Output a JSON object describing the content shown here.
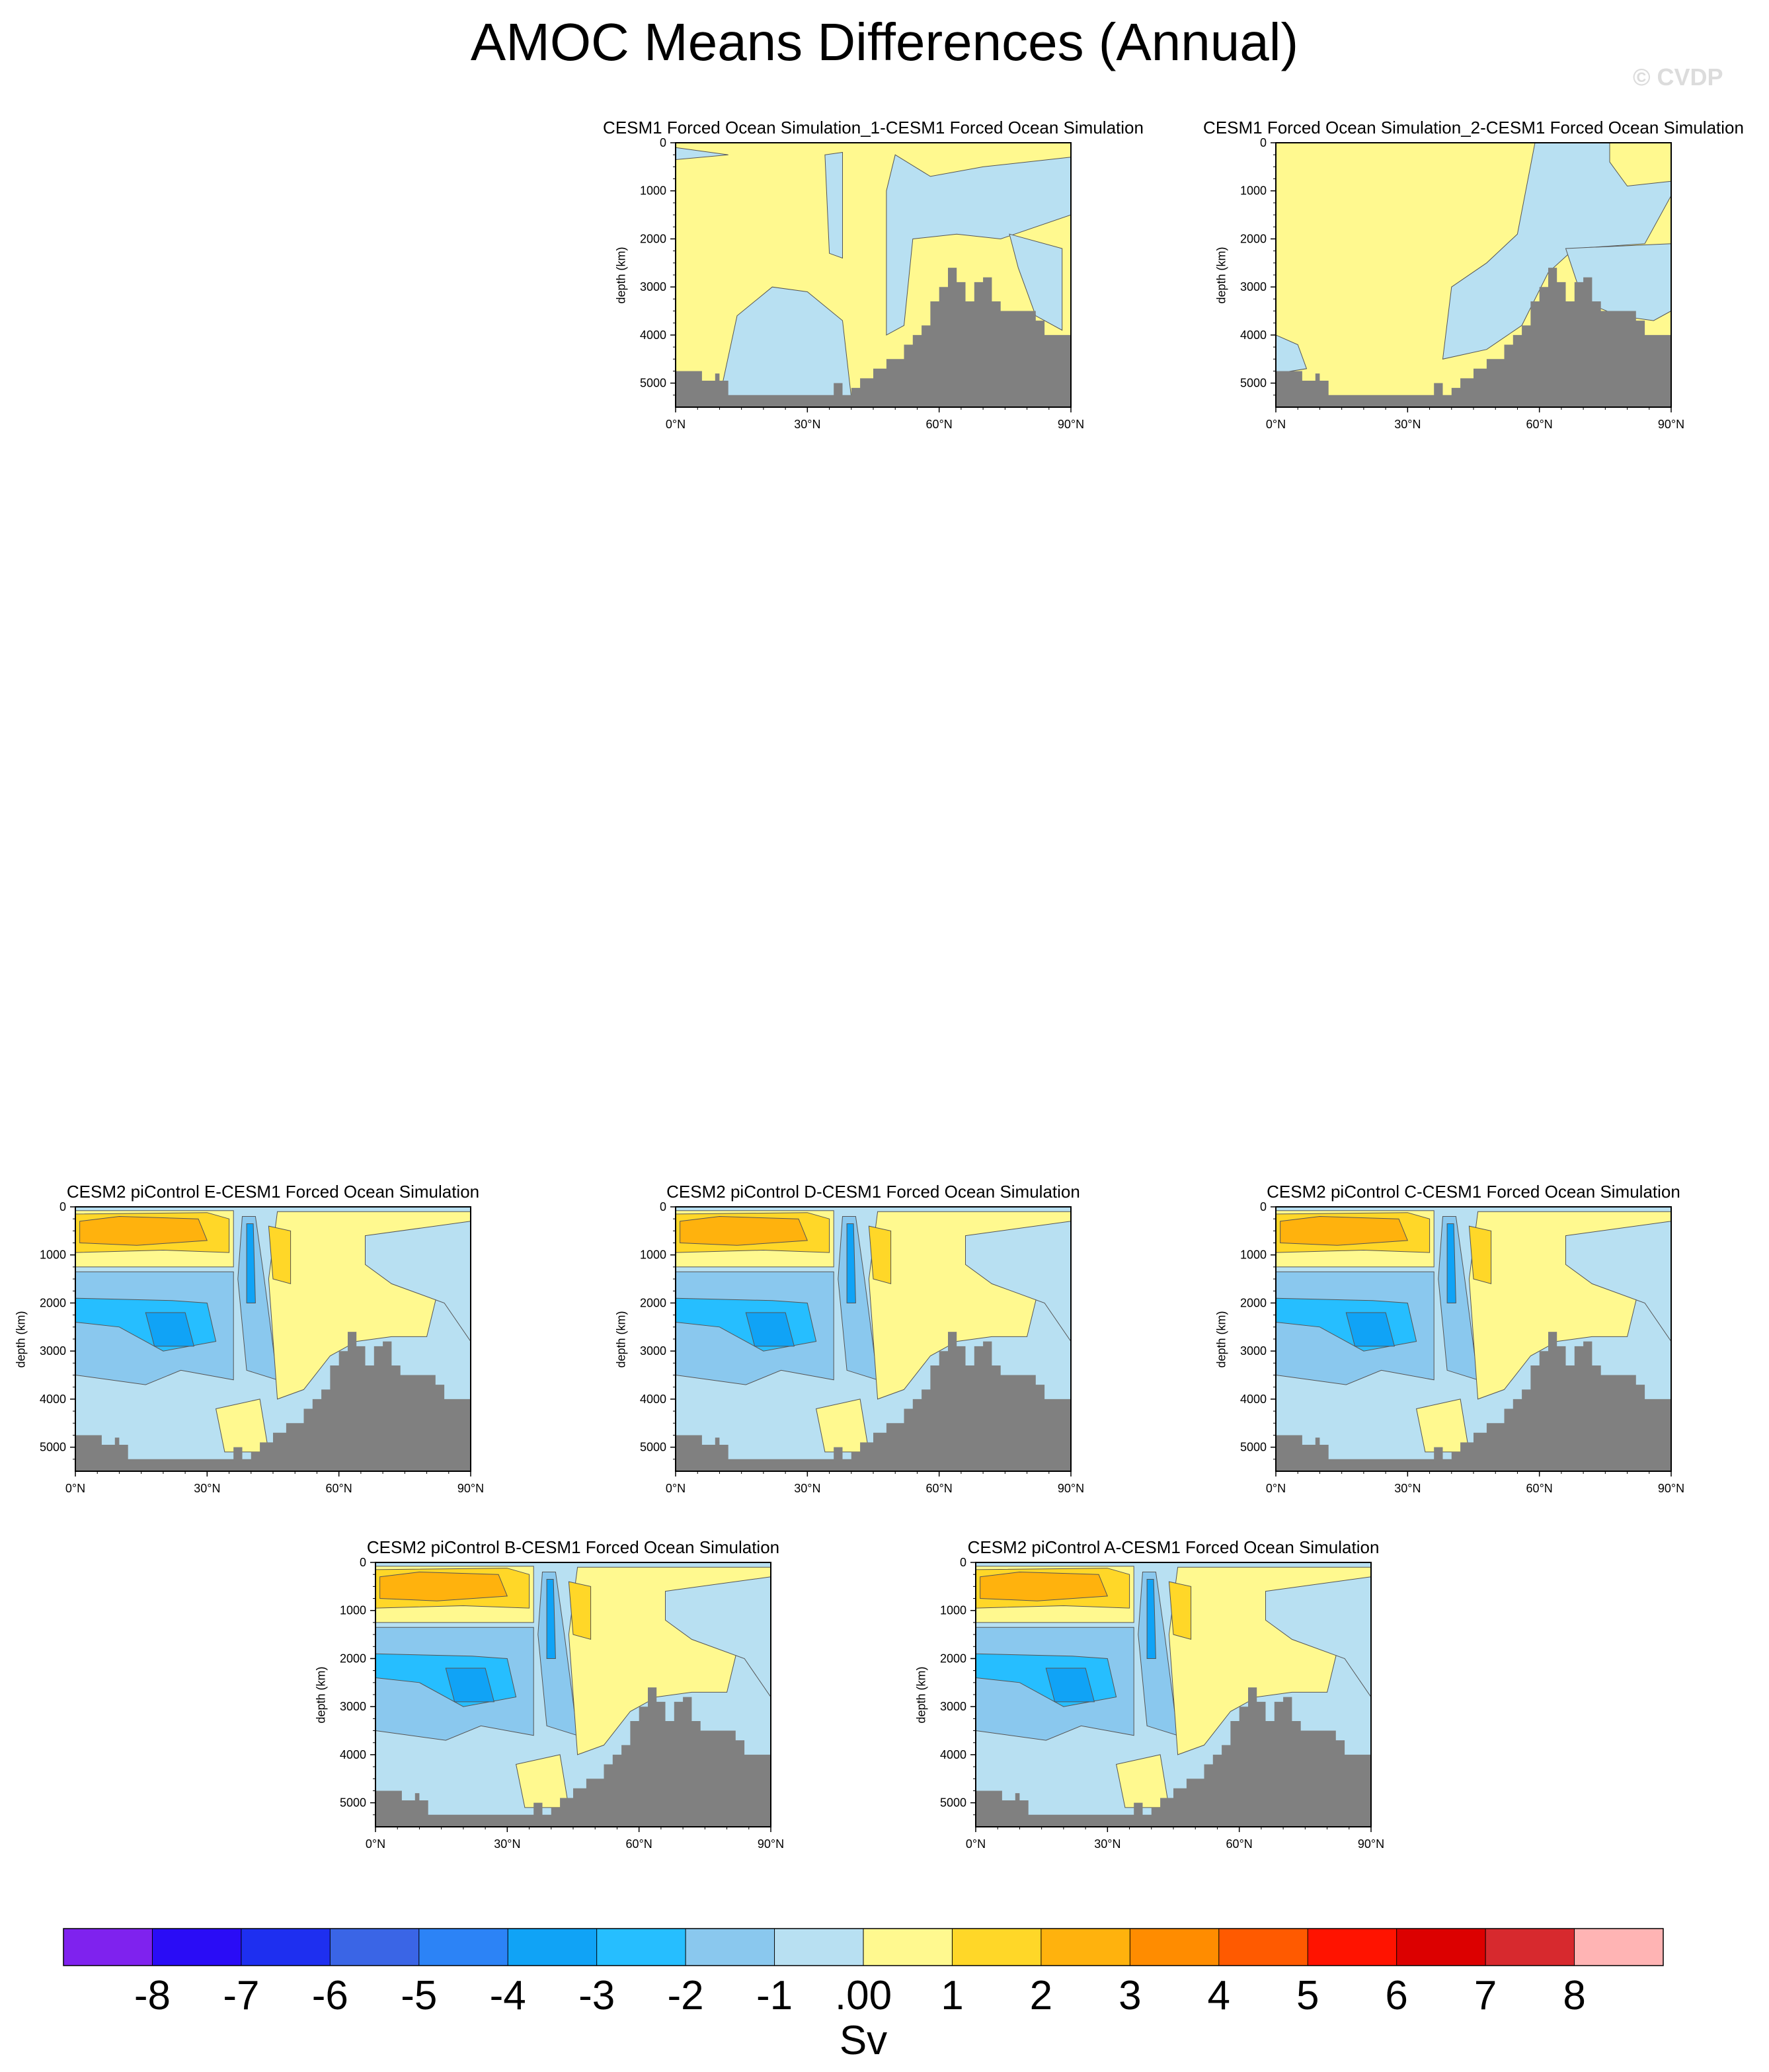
{
  "title": "AMOC Means Differences (Annual)",
  "watermark": "© CVDP",
  "colors": {
    "land": "#808080",
    "n1": "#b8e0f2",
    "n2": "#8ac8ee",
    "n3": "#26beff",
    "n4": "#10a3f6",
    "p1": "#fff98f",
    "p2": "#ffd728",
    "p3": "#ffb20d"
  },
  "chart_data": [
    {
      "type": "contour",
      "title": "CESM1 Forced Ocean Simulation_1-CESM1 Forced Ocean Simulation",
      "ylabel": "depth (km)",
      "xlim": [
        0,
        90
      ],
      "ylim": [
        5500,
        0
      ],
      "xticks": [
        "0°N",
        "30°N",
        "60°N",
        "90°N"
      ],
      "yticks": [
        "0",
        "1000",
        "2000",
        "3000",
        "4000",
        "5000"
      ],
      "pattern": "forced1"
    },
    {
      "type": "contour",
      "title": "CESM1 Forced Ocean Simulation_2-CESM1 Forced Ocean Simulation",
      "ylabel": "depth (km)",
      "xlim": [
        0,
        90
      ],
      "ylim": [
        5500,
        0
      ],
      "xticks": [
        "0°N",
        "30°N",
        "60°N",
        "90°N"
      ],
      "yticks": [
        "0",
        "1000",
        "2000",
        "3000",
        "4000",
        "5000"
      ],
      "pattern": "forced2"
    },
    {
      "type": "contour",
      "title": "CESM2 piControl E-CESM1 Forced Ocean Simulation",
      "ylabel": "depth (km)",
      "xlim": [
        0,
        90
      ],
      "ylim": [
        5500,
        0
      ],
      "xticks": [
        "0°N",
        "30°N",
        "60°N",
        "90°N"
      ],
      "yticks": [
        "0",
        "1000",
        "2000",
        "3000",
        "4000",
        "5000"
      ],
      "pattern": "pi"
    },
    {
      "type": "contour",
      "title": "CESM2 piControl D-CESM1 Forced Ocean Simulation",
      "ylabel": "depth (km)",
      "xlim": [
        0,
        90
      ],
      "ylim": [
        5500,
        0
      ],
      "xticks": [
        "0°N",
        "30°N",
        "60°N",
        "90°N"
      ],
      "yticks": [
        "0",
        "1000",
        "2000",
        "3000",
        "4000",
        "5000"
      ],
      "pattern": "pi"
    },
    {
      "type": "contour",
      "title": "CESM2 piControl C-CESM1 Forced Ocean Simulation",
      "ylabel": "depth (km)",
      "xlim": [
        0,
        90
      ],
      "ylim": [
        5500,
        0
      ],
      "xticks": [
        "0°N",
        "30°N",
        "60°N",
        "90°N"
      ],
      "yticks": [
        "0",
        "1000",
        "2000",
        "3000",
        "4000",
        "5000"
      ],
      "pattern": "pi"
    },
    {
      "type": "contour",
      "title": "CESM2 piControl B-CESM1 Forced Ocean Simulation",
      "ylabel": "depth (km)",
      "xlim": [
        0,
        90
      ],
      "ylim": [
        5500,
        0
      ],
      "xticks": [
        "0°N",
        "30°N",
        "60°N",
        "90°N"
      ],
      "yticks": [
        "0",
        "1000",
        "2000",
        "3000",
        "4000",
        "5000"
      ],
      "pattern": "pi"
    },
    {
      "type": "contour",
      "title": "CESM2 piControl A-CESM1 Forced Ocean Simulation",
      "ylabel": "depth (km)",
      "xlim": [
        0,
        90
      ],
      "ylim": [
        5500,
        0
      ],
      "xticks": [
        "0°N",
        "30°N",
        "60°N",
        "90°N"
      ],
      "yticks": [
        "0",
        "1000",
        "2000",
        "3000",
        "4000",
        "5000"
      ],
      "pattern": "pi"
    }
  ],
  "bathymetry": {
    "lat": [
      0,
      3,
      6,
      9,
      10,
      12,
      20,
      30,
      36,
      38,
      40,
      42,
      45,
      48,
      52,
      54,
      56,
      58,
      60,
      62,
      64,
      66,
      68,
      70,
      72,
      74,
      78,
      82,
      84,
      90
    ],
    "depth": [
      4750,
      4750,
      4950,
      4800,
      4950,
      5250,
      5250,
      5250,
      5000,
      5250,
      5100,
      4900,
      4700,
      4500,
      4200,
      4000,
      3800,
      3300,
      3000,
      2600,
      2900,
      3300,
      2900,
      2800,
      3300,
      3500,
      3500,
      3700,
      4000,
      4000
    ]
  },
  "colorbar": {
    "unit": "Sv",
    "labels": [
      "-8",
      "-7",
      "-6",
      "-5",
      "-4",
      "-3",
      "-2",
      "-1",
      ".00",
      "1",
      "2",
      "3",
      "4",
      "5",
      "6",
      "7",
      "8"
    ],
    "colors": [
      "#7f22ee",
      "#2a0cf6",
      "#1e2ff0",
      "#3a65e6",
      "#2c83f6",
      "#10a3f6",
      "#26beff",
      "#8ac8ee",
      "#b8e0f2",
      "#fff98f",
      "#ffd728",
      "#ffb20d",
      "#ff8c00",
      "#ff5a00",
      "#ff1300",
      "#dc0000",
      "#d7292e",
      "#ffb4b4"
    ]
  }
}
